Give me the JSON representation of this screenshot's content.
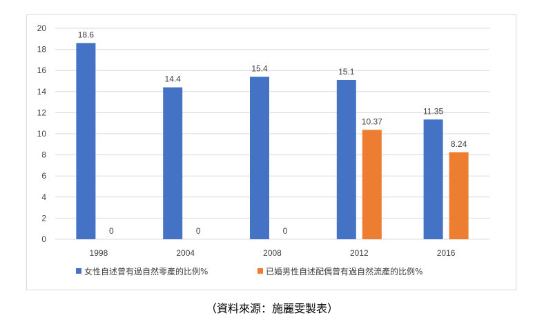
{
  "chart_data": {
    "type": "bar",
    "categories": [
      "1998",
      "2004",
      "2008",
      "2012",
      "2016"
    ],
    "series": [
      {
        "name": "女性自述曾有過自然零產的比例%",
        "color": "#4472c4",
        "values": [
          18.6,
          14.4,
          15.4,
          15.1,
          11.35
        ],
        "labels": [
          "18.6",
          "14.4",
          "15.4",
          "15.1",
          "11.35"
        ]
      },
      {
        "name": "已婚男性自述配偶曾有過自然流產的比例%",
        "color": "#ed7d31",
        "values": [
          0,
          0,
          0,
          10.37,
          8.24
        ],
        "labels": [
          "0",
          "0",
          "0",
          "10.37",
          "8.24"
        ]
      }
    ],
    "ylim": [
      0,
      20
    ],
    "yticks": [
      "0",
      "2",
      "4",
      "6",
      "8",
      "10",
      "12",
      "14",
      "16",
      "18",
      "20"
    ],
    "grid": true,
    "legend": "bottom"
  },
  "source_note": "（資料來源：施麗雯製表）"
}
